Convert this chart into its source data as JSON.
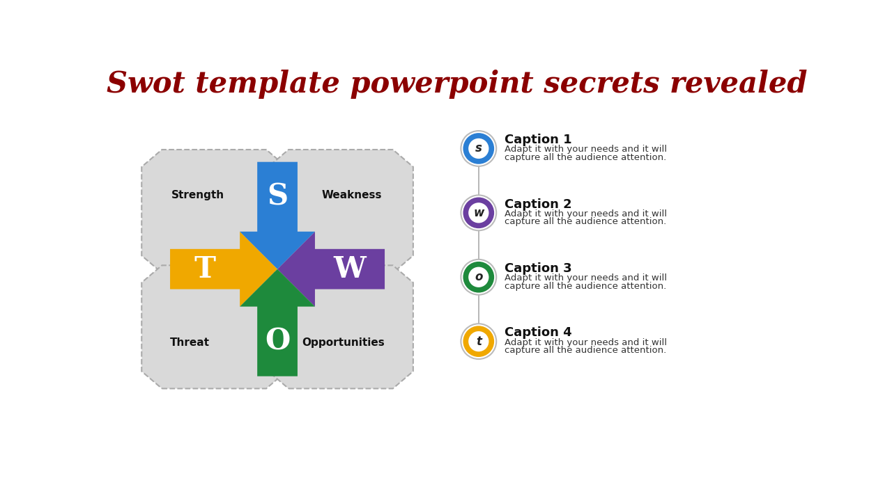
{
  "title": "Swot template powerpoint secrets revealed",
  "title_color": "#8B0000",
  "title_fontsize": 30,
  "background_color": "#ffffff",
  "quadrant_labels": [
    "Strength",
    "Weakness",
    "Threat",
    "Opportunities"
  ],
  "arrow_letters": [
    "S",
    "W",
    "T",
    "O"
  ],
  "arrow_colors": [
    "#2B7FD4",
    "#6B3FA0",
    "#F0A800",
    "#1E8A3C"
  ],
  "caption_titles": [
    "Caption 1",
    "Caption 2",
    "Caption 3",
    "Caption 4"
  ],
  "caption_line1": "Adapt it with your needs and it will",
  "caption_line2": "capture all the audience attention.",
  "circle_colors": [
    "#2B7FD4",
    "#6B3FA0",
    "#1E8A3C",
    "#F0A800"
  ],
  "circle_letters": [
    "s",
    "w",
    "o",
    "t"
  ],
  "quadrant_bg": "#D9D9D9",
  "dashed_border_color": "#AAAAAA"
}
